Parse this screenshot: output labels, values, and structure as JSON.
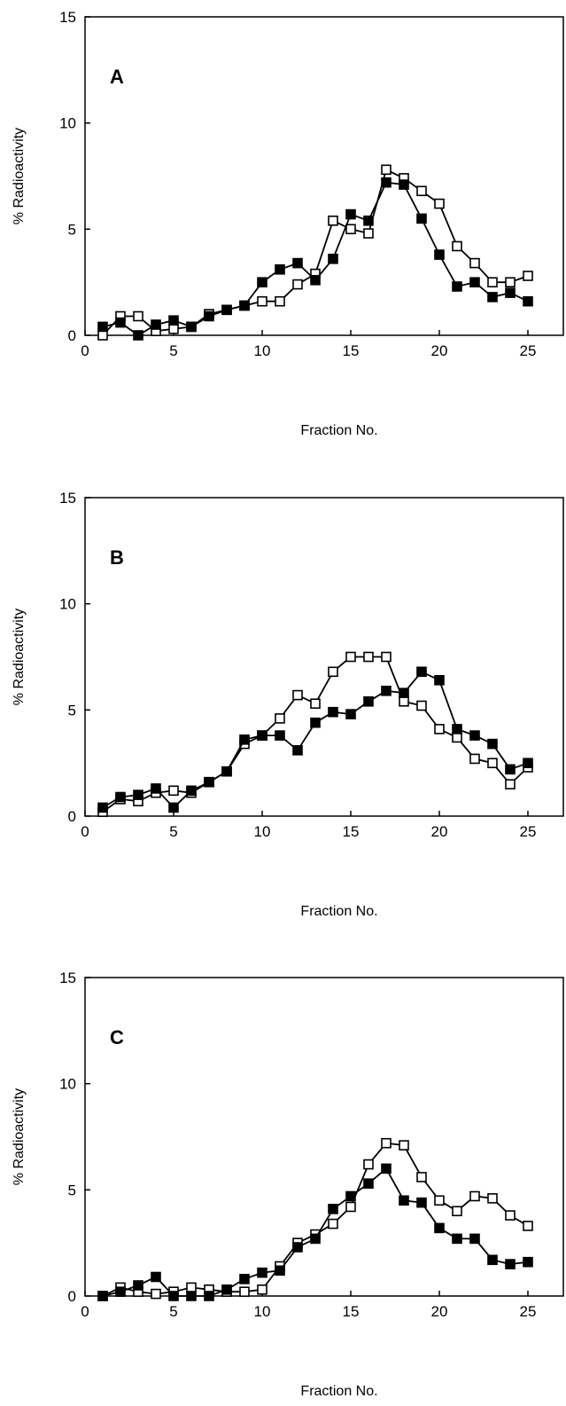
{
  "chart_data": [
    {
      "type": "line",
      "panel_label": "A",
      "xlabel": "Fraction No.",
      "ylabel": "% Radioactivity",
      "xlim": [
        0,
        27
      ],
      "ylim": [
        0,
        15
      ],
      "xticks": [
        0,
        5,
        10,
        15,
        20,
        25
      ],
      "yticks": [
        0,
        5,
        10,
        15
      ],
      "grid": false,
      "x": [
        1,
        2,
        3,
        4,
        5,
        6,
        7,
        8,
        9,
        10,
        11,
        12,
        13,
        14,
        15,
        16,
        17,
        18,
        19,
        20,
        21,
        22,
        23,
        24,
        25
      ],
      "series": [
        {
          "marker": "filled-square",
          "color": "#000000",
          "values": [
            0.4,
            0.6,
            0.0,
            0.5,
            0.7,
            0.4,
            0.9,
            1.2,
            1.4,
            2.5,
            3.1,
            3.4,
            2.6,
            3.6,
            5.7,
            5.4,
            7.2,
            7.1,
            5.5,
            3.8,
            2.3,
            2.5,
            1.8,
            2.0,
            1.6
          ]
        },
        {
          "marker": "open-square",
          "color": "#000000",
          "values": [
            0.0,
            0.9,
            0.9,
            0.2,
            0.3,
            0.4,
            1.0,
            1.2,
            1.4,
            1.6,
            1.6,
            2.4,
            2.9,
            5.4,
            5.0,
            4.8,
            7.8,
            7.4,
            6.8,
            6.2,
            4.2,
            3.4,
            2.5,
            2.5,
            2.8
          ]
        }
      ]
    },
    {
      "type": "line",
      "panel_label": "B",
      "xlabel": "Fraction No.",
      "ylabel": "% Radioactivity",
      "xlim": [
        0,
        27
      ],
      "ylim": [
        0,
        15
      ],
      "xticks": [
        0,
        5,
        10,
        15,
        20,
        25
      ],
      "yticks": [
        0,
        5,
        10,
        15
      ],
      "grid": false,
      "x": [
        1,
        2,
        3,
        4,
        5,
        6,
        7,
        8,
        9,
        10,
        11,
        12,
        13,
        14,
        15,
        16,
        17,
        18,
        19,
        20,
        21,
        22,
        23,
        24,
        25
      ],
      "series": [
        {
          "marker": "filled-square",
          "color": "#000000",
          "values": [
            0.4,
            0.9,
            1.0,
            1.3,
            0.4,
            1.2,
            1.6,
            2.1,
            3.6,
            3.8,
            3.8,
            3.1,
            4.4,
            4.9,
            4.8,
            5.4,
            5.9,
            5.8,
            6.8,
            6.4,
            4.1,
            3.8,
            3.4,
            2.2,
            2.5
          ]
        },
        {
          "marker": "open-square",
          "color": "#000000",
          "values": [
            0.2,
            0.8,
            0.7,
            1.1,
            1.2,
            1.1,
            1.6,
            2.1,
            3.4,
            3.8,
            4.6,
            5.7,
            5.3,
            6.8,
            7.5,
            7.5,
            7.5,
            5.4,
            5.2,
            4.1,
            3.7,
            2.7,
            2.5,
            1.5,
            2.3
          ]
        }
      ]
    },
    {
      "type": "line",
      "panel_label": "C",
      "xlabel": "Fraction No.",
      "ylabel": "% Radioactivity",
      "xlim": [
        0,
        27
      ],
      "ylim": [
        0,
        15
      ],
      "xticks": [
        0,
        5,
        10,
        15,
        20,
        25
      ],
      "yticks": [
        0,
        5,
        10,
        15
      ],
      "grid": false,
      "x": [
        1,
        2,
        3,
        4,
        5,
        6,
        7,
        8,
        9,
        10,
        11,
        12,
        13,
        14,
        15,
        16,
        17,
        18,
        19,
        20,
        21,
        22,
        23,
        24,
        25
      ],
      "series": [
        {
          "marker": "filled-square",
          "color": "#000000",
          "values": [
            0.0,
            0.2,
            0.5,
            0.9,
            0.0,
            0.0,
            0.0,
            0.3,
            0.8,
            1.1,
            1.2,
            2.3,
            2.7,
            4.1,
            4.7,
            5.3,
            6.0,
            4.5,
            4.4,
            3.2,
            2.7,
            2.7,
            1.7,
            1.5,
            1.6
          ]
        },
        {
          "marker": "open-square",
          "color": "#000000",
          "values": [
            0.0,
            0.4,
            0.2,
            0.1,
            0.2,
            0.4,
            0.3,
            0.2,
            0.2,
            0.3,
            1.4,
            2.5,
            2.9,
            3.4,
            4.2,
            6.2,
            7.2,
            7.1,
            5.6,
            4.5,
            4.0,
            4.7,
            4.6,
            3.8,
            3.3
          ]
        }
      ]
    }
  ]
}
